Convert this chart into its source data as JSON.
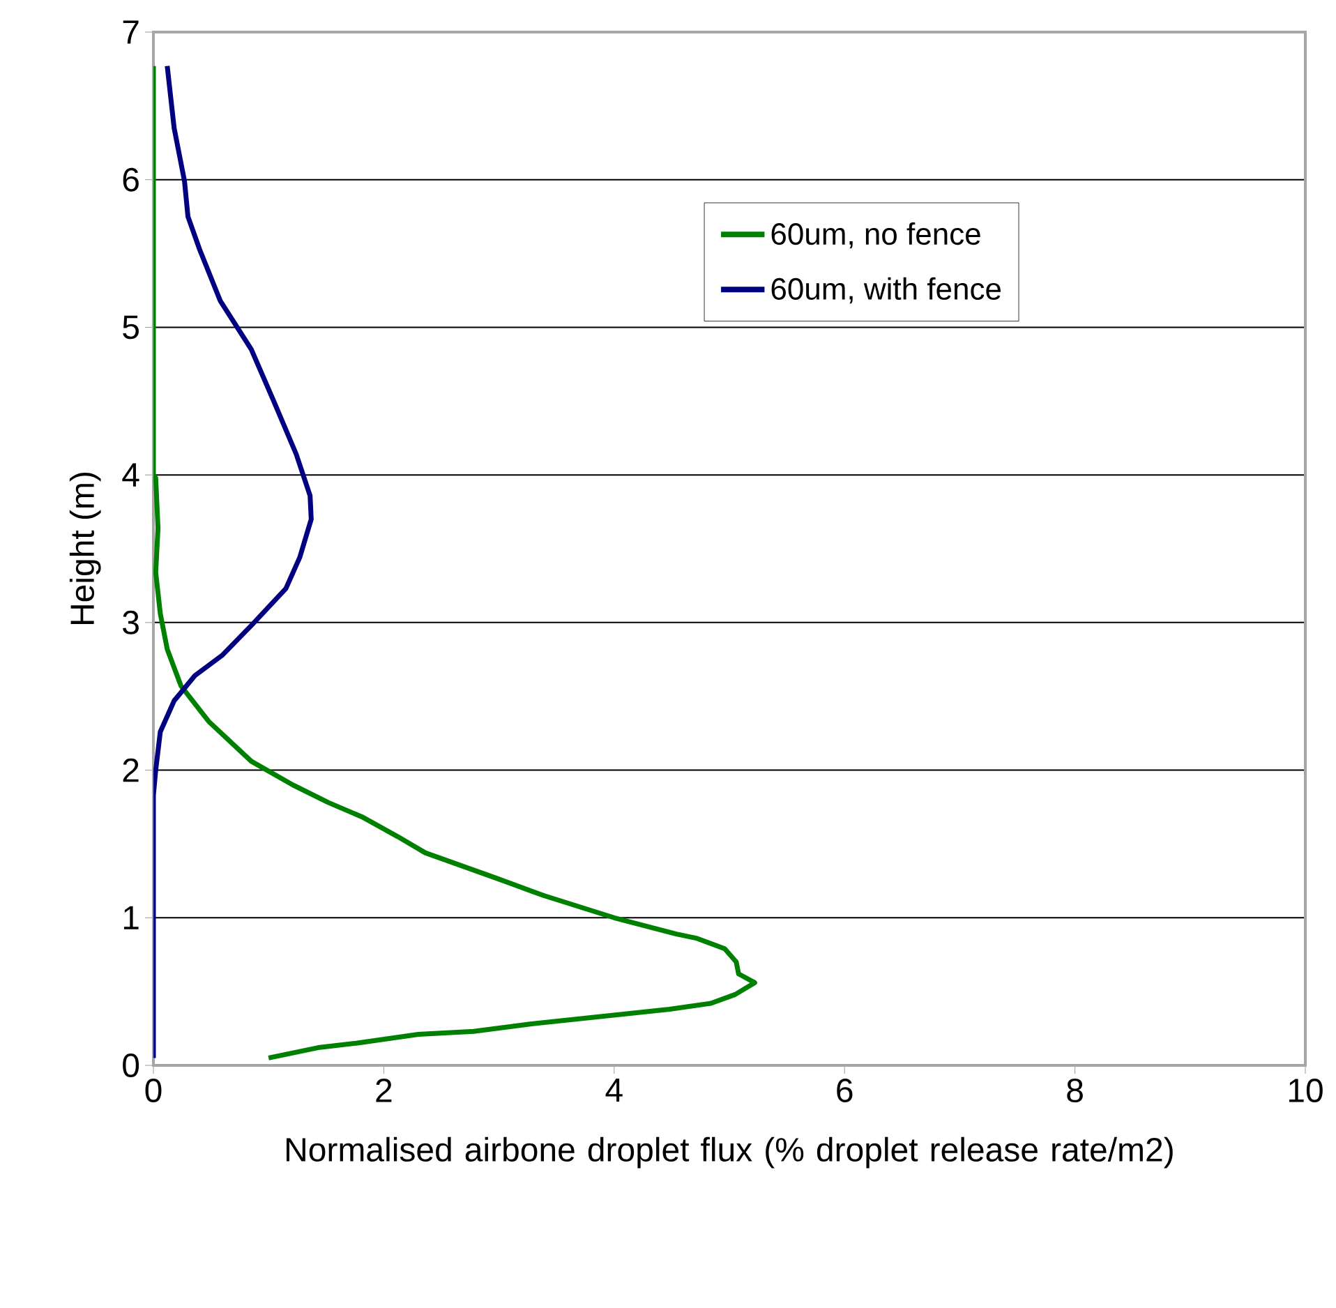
{
  "chart_data": {
    "type": "line",
    "xlabel": "Normalised airbone droplet flux (% droplet release rate/m2)",
    "ylabel": "Height (m)",
    "xlim": [
      0,
      10
    ],
    "ylim": [
      0,
      7
    ],
    "xticks": [
      0,
      2,
      4,
      6,
      8,
      10
    ],
    "yticks": [
      0,
      1,
      2,
      3,
      4,
      5,
      6,
      7
    ],
    "grid": "y",
    "legend": "top right",
    "series": [
      {
        "name": "60um, no fence",
        "color": "#008000",
        "x": [
          1.0,
          1.43,
          1.76,
          2.3,
          2.78,
          3.27,
          4.48,
          4.84,
          5.05,
          5.22,
          5.08,
          5.06,
          4.96,
          4.72,
          4.54,
          4.0,
          3.39,
          2.97,
          2.36,
          2.12,
          1.82,
          1.52,
          1.21,
          0.85,
          0.48,
          0.24,
          0.12,
          0.06,
          0.02,
          0.04,
          0.02,
          0,
          0
        ],
        "values": [
          0.05,
          0.12,
          0.15,
          0.21,
          0.23,
          0.28,
          0.38,
          0.42,
          0.48,
          0.56,
          0.62,
          0.7,
          0.79,
          0.86,
          0.89,
          1.0,
          1.15,
          1.27,
          1.44,
          1.55,
          1.68,
          1.78,
          1.9,
          2.06,
          2.33,
          2.57,
          2.82,
          3.06,
          3.34,
          3.64,
          3.98,
          4.0,
          6.77
        ]
      },
      {
        "name": "60um, with fence",
        "color": "#000080",
        "x": [
          0,
          0,
          0.02,
          0.06,
          0.18,
          0.36,
          0.6,
          0.85,
          1.15,
          1.27,
          1.37,
          1.36,
          1.24,
          1.05,
          0.85,
          0.58,
          0.4,
          0.3,
          0.27,
          0.18,
          0.12
        ],
        "values": [
          0.05,
          1.83,
          2.0,
          2.26,
          2.47,
          2.64,
          2.78,
          2.98,
          3.23,
          3.44,
          3.7,
          3.86,
          4.14,
          4.49,
          4.85,
          5.18,
          5.53,
          5.75,
          5.99,
          6.35,
          6.77
        ]
      }
    ]
  }
}
